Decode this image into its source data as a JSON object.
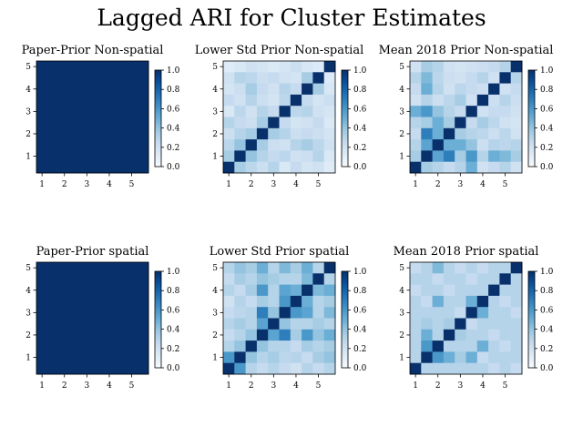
{
  "figure": {
    "title": "Lagged ARI for Cluster Estimates"
  },
  "colorbar_ticks": [
    "0.0",
    "0.2",
    "0.4",
    "0.6",
    "0.8",
    "1.0"
  ],
  "colors": {
    "low": "#f7fbff",
    "high": "#08306b"
  },
  "chart_data": [
    {
      "type": "heatmap",
      "title": "Paper-Prior Non-spatial",
      "xticks": [
        "1",
        "2",
        "3",
        "4",
        "5"
      ],
      "yticks": [
        "1",
        "2",
        "3",
        "4",
        "5"
      ],
      "vmin": 0,
      "vmax": 1,
      "values": [
        [
          1,
          1,
          1,
          1,
          1,
          1,
          1,
          1,
          1,
          1
        ],
        [
          1,
          1,
          1,
          1,
          1,
          1,
          1,
          1,
          1,
          1
        ],
        [
          1,
          1,
          1,
          1,
          1,
          1,
          1,
          1,
          1,
          1
        ],
        [
          1,
          1,
          1,
          1,
          1,
          1,
          1,
          1,
          1,
          1
        ],
        [
          1,
          1,
          1,
          1,
          1,
          1,
          1,
          1,
          1,
          1
        ],
        [
          1,
          1,
          1,
          1,
          1,
          1,
          1,
          1,
          1,
          1
        ],
        [
          1,
          1,
          1,
          1,
          1,
          1,
          1,
          1,
          1,
          1
        ],
        [
          1,
          1,
          1,
          1,
          1,
          1,
          1,
          1,
          1,
          1
        ],
        [
          1,
          1,
          1,
          1,
          1,
          1,
          1,
          1,
          1,
          1
        ],
        [
          1,
          1,
          1,
          1,
          1,
          1,
          1,
          1,
          1,
          1
        ]
      ]
    },
    {
      "type": "heatmap",
      "title": "Lower Std Prior Non-spatial",
      "xticks": [
        "1",
        "2",
        "3",
        "4",
        "5"
      ],
      "yticks": [
        "1",
        "2",
        "3",
        "4",
        "5"
      ],
      "vmin": 0,
      "vmax": 1,
      "values": [
        [
          0.12,
          0.15,
          0.2,
          0.18,
          0.14,
          0.17,
          0.22,
          0.16,
          0.13,
          1.0
        ],
        [
          0.2,
          0.3,
          0.28,
          0.22,
          0.25,
          0.2,
          0.18,
          0.35,
          1.0,
          0.13
        ],
        [
          0.18,
          0.22,
          0.35,
          0.25,
          0.2,
          0.3,
          0.25,
          1.0,
          0.35,
          0.16
        ],
        [
          0.25,
          0.2,
          0.3,
          0.22,
          0.18,
          0.28,
          1.0,
          0.25,
          0.18,
          0.22
        ],
        [
          0.15,
          0.28,
          0.2,
          0.3,
          0.25,
          1.0,
          0.28,
          0.3,
          0.2,
          0.17
        ],
        [
          0.3,
          0.25,
          0.22,
          0.35,
          1.0,
          0.25,
          0.18,
          0.2,
          0.25,
          0.14
        ],
        [
          0.22,
          0.3,
          0.35,
          1.0,
          0.35,
          0.3,
          0.22,
          0.25,
          0.22,
          0.18
        ],
        [
          0.28,
          0.4,
          1.0,
          0.35,
          0.22,
          0.2,
          0.3,
          0.35,
          0.28,
          0.2
        ],
        [
          0.35,
          1.0,
          0.4,
          0.3,
          0.25,
          0.28,
          0.2,
          0.22,
          0.3,
          0.15
        ],
        [
          1.0,
          0.35,
          0.28,
          0.22,
          0.3,
          0.15,
          0.25,
          0.18,
          0.2,
          0.12
        ]
      ]
    },
    {
      "type": "heatmap",
      "title": "Mean 2018 Prior Non-spatial",
      "xticks": [
        "1",
        "2",
        "3",
        "4",
        "5"
      ],
      "yticks": [
        "1",
        "2",
        "3",
        "4",
        "5"
      ],
      "vmin": 0,
      "vmax": 1,
      "values": [
        [
          0.2,
          0.35,
          0.3,
          0.2,
          0.18,
          0.2,
          0.22,
          0.25,
          0.3,
          1.0
        ],
        [
          0.3,
          0.45,
          0.28,
          0.22,
          0.2,
          0.25,
          0.3,
          0.2,
          1.0,
          0.3
        ],
        [
          0.25,
          0.5,
          0.3,
          0.2,
          0.28,
          0.25,
          0.22,
          1.0,
          0.2,
          0.25
        ],
        [
          0.2,
          0.3,
          0.22,
          0.28,
          0.35,
          0.2,
          1.0,
          0.22,
          0.3,
          0.22
        ],
        [
          0.5,
          0.6,
          0.4,
          0.3,
          0.25,
          1.0,
          0.2,
          0.25,
          0.25,
          0.2
        ],
        [
          0.3,
          0.35,
          0.5,
          0.35,
          1.0,
          0.25,
          0.35,
          0.28,
          0.2,
          0.18
        ],
        [
          0.25,
          0.7,
          0.5,
          1.0,
          0.35,
          0.3,
          0.28,
          0.22,
          0.28,
          0.2
        ],
        [
          0.3,
          0.55,
          1.0,
          0.5,
          0.5,
          0.4,
          0.22,
          0.3,
          0.28,
          0.3
        ],
        [
          0.35,
          1.0,
          0.55,
          0.7,
          0.35,
          0.6,
          0.3,
          0.5,
          0.45,
          0.35
        ],
        [
          1.0,
          0.35,
          0.3,
          0.25,
          0.3,
          0.5,
          0.2,
          0.25,
          0.3,
          0.2
        ]
      ]
    },
    {
      "type": "heatmap",
      "title": "Paper-Prior spatial",
      "xticks": [
        "1",
        "2",
        "3",
        "4",
        "5"
      ],
      "yticks": [
        "1",
        "2",
        "3",
        "4",
        "5"
      ],
      "vmin": 0,
      "vmax": 1,
      "values": [
        [
          1,
          1,
          1,
          1,
          1,
          1,
          1,
          1,
          1,
          1
        ],
        [
          1,
          1,
          1,
          1,
          1,
          1,
          1,
          1,
          1,
          1
        ],
        [
          1,
          1,
          1,
          1,
          1,
          1,
          1,
          1,
          1,
          1
        ],
        [
          1,
          1,
          1,
          1,
          1,
          1,
          1,
          1,
          1,
          1
        ],
        [
          1,
          1,
          1,
          1,
          1,
          1,
          1,
          1,
          1,
          1
        ],
        [
          1,
          1,
          1,
          1,
          1,
          1,
          1,
          1,
          1,
          1
        ],
        [
          1,
          1,
          1,
          1,
          1,
          1,
          1,
          1,
          1,
          1
        ],
        [
          1,
          1,
          1,
          1,
          1,
          1,
          1,
          1,
          1,
          1
        ],
        [
          1,
          1,
          1,
          1,
          1,
          1,
          1,
          1,
          1,
          1
        ],
        [
          1,
          1,
          1,
          1,
          1,
          1,
          1,
          1,
          1,
          1
        ]
      ]
    },
    {
      "type": "heatmap",
      "title": "Lower Std Prior spatial",
      "xticks": [
        "1",
        "2",
        "3",
        "4",
        "5"
      ],
      "yticks": [
        "1",
        "2",
        "3",
        "4",
        "5"
      ],
      "vmin": 0,
      "vmax": 1,
      "values": [
        [
          0.3,
          0.4,
          0.35,
          0.5,
          0.3,
          0.45,
          0.35,
          0.5,
          0.3,
          1.0
        ],
        [
          0.25,
          0.35,
          0.3,
          0.4,
          0.35,
          0.3,
          0.3,
          0.45,
          1.0,
          0.3
        ],
        [
          0.3,
          0.25,
          0.35,
          0.6,
          0.3,
          0.55,
          0.5,
          1.0,
          0.45,
          0.5
        ],
        [
          0.2,
          0.3,
          0.25,
          0.35,
          0.3,
          0.6,
          1.0,
          0.5,
          0.3,
          0.35
        ],
        [
          0.25,
          0.28,
          0.3,
          0.7,
          0.4,
          1.0,
          0.6,
          0.55,
          0.3,
          0.45
        ],
        [
          0.3,
          0.35,
          0.3,
          0.55,
          1.0,
          0.4,
          0.3,
          0.3,
          0.35,
          0.3
        ],
        [
          0.25,
          0.3,
          0.4,
          1.0,
          0.55,
          0.7,
          0.35,
          0.6,
          0.4,
          0.5
        ],
        [
          0.3,
          0.4,
          1.0,
          0.4,
          0.3,
          0.3,
          0.25,
          0.35,
          0.3,
          0.35
        ],
        [
          0.6,
          1.0,
          0.4,
          0.3,
          0.35,
          0.28,
          0.3,
          0.25,
          0.35,
          0.4
        ],
        [
          1.0,
          0.6,
          0.3,
          0.25,
          0.3,
          0.25,
          0.2,
          0.3,
          0.25,
          0.3
        ]
      ]
    },
    {
      "type": "heatmap",
      "title": "Mean 2018 Prior spatial",
      "xticks": [
        "1",
        "2",
        "3",
        "4",
        "5"
      ],
      "yticks": [
        "1",
        "2",
        "3",
        "4",
        "5"
      ],
      "vmin": 0,
      "vmax": 1,
      "values": [
        [
          0.25,
          0.3,
          0.45,
          0.3,
          0.25,
          0.3,
          0.25,
          0.3,
          0.3,
          1.0
        ],
        [
          0.3,
          0.3,
          0.25,
          0.3,
          0.3,
          0.25,
          0.3,
          0.3,
          1.0,
          0.3
        ],
        [
          0.25,
          0.3,
          0.3,
          0.25,
          0.3,
          0.3,
          0.3,
          1.0,
          0.3,
          0.3
        ],
        [
          0.3,
          0.25,
          0.5,
          0.3,
          0.3,
          0.5,
          1.0,
          0.3,
          0.25,
          0.3
        ],
        [
          0.3,
          0.3,
          0.3,
          0.3,
          0.25,
          1.0,
          0.5,
          0.3,
          0.3,
          0.25
        ],
        [
          0.3,
          0.35,
          0.3,
          0.35,
          1.0,
          0.25,
          0.3,
          0.3,
          0.3,
          0.3
        ],
        [
          0.3,
          0.5,
          0.3,
          1.0,
          0.35,
          0.3,
          0.3,
          0.25,
          0.3,
          0.3
        ],
        [
          0.3,
          0.6,
          1.0,
          0.3,
          0.3,
          0.3,
          0.5,
          0.3,
          0.25,
          0.3
        ],
        [
          0.3,
          1.0,
          0.6,
          0.5,
          0.35,
          0.5,
          0.25,
          0.3,
          0.3,
          0.3
        ],
        [
          1.0,
          0.3,
          0.3,
          0.3,
          0.3,
          0.3,
          0.3,
          0.25,
          0.3,
          0.25
        ]
      ]
    }
  ]
}
